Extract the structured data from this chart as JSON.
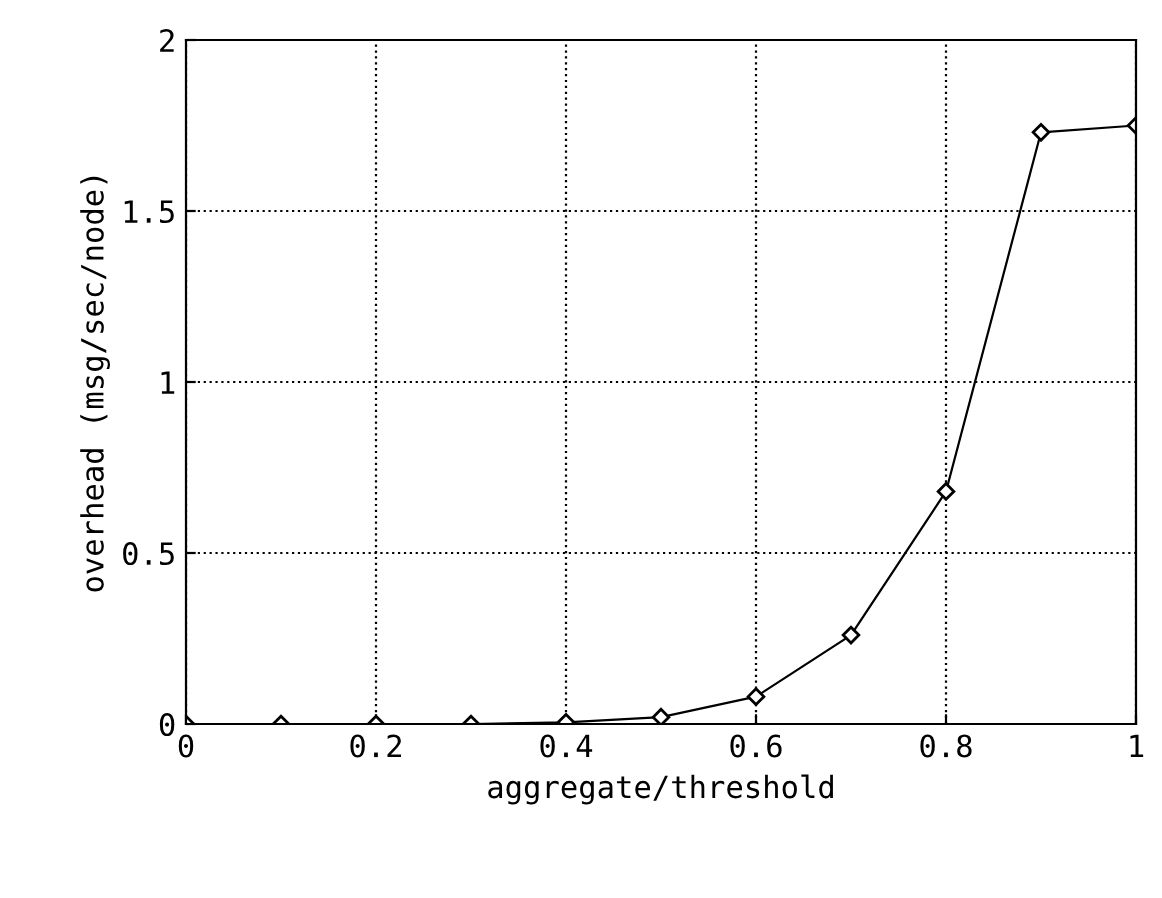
{
  "chart_data": {
    "type": "line",
    "xlabel": "aggregate/threshold",
    "ylabel": "overhead (msg/sec/node)",
    "x": [
      0,
      0.1,
      0.2,
      0.3,
      0.4,
      0.5,
      0.6,
      0.7,
      0.8,
      0.9,
      1.0
    ],
    "series": [
      {
        "color": "#000000",
        "values": [
          0,
          0,
          0,
          0,
          0.005,
          0.02,
          0.08,
          0.26,
          0.68,
          1.73,
          1.75
        ]
      }
    ],
    "xlim": [
      0,
      1
    ],
    "xticks": [
      0,
      0.2,
      0.4,
      0.6,
      0.8,
      1
    ],
    "ylim": [
      0,
      2
    ],
    "yticks": [
      0,
      0.5,
      1,
      1.5,
      2
    ],
    "grid": true,
    "marker": "diamond",
    "line_style": "solid"
  }
}
